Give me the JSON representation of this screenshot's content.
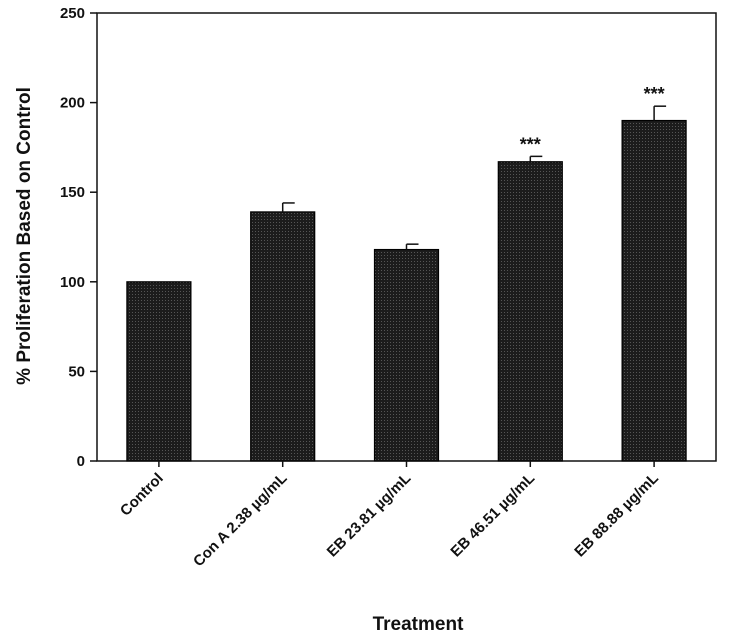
{
  "chart_data": {
    "type": "bar",
    "title": "",
    "xlabel": "Treatment",
    "ylabel": "% Proliferation Based on Control",
    "ylim": [
      0,
      250
    ],
    "yticks": [
      0,
      50,
      100,
      150,
      200,
      250
    ],
    "grid": false,
    "categories": [
      "Control",
      "Con A 2.38 µg/mL",
      "EB 23.81 µg/mL",
      "EB 46.51 µg/mL",
      "EB 88.88 µg/mL"
    ],
    "values": [
      100,
      139,
      118,
      167,
      190
    ],
    "errors": [
      0,
      5,
      3,
      3,
      8
    ],
    "annotations": [
      "",
      "",
      "",
      "***",
      "***"
    ],
    "bar_color": "#1c1c1c"
  }
}
